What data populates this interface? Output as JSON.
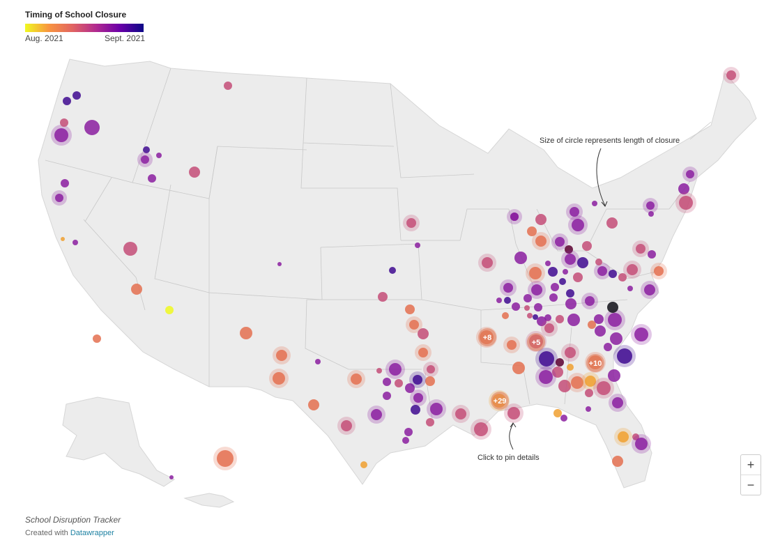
{
  "legend": {
    "title": "Timing of School Closure",
    "start_label": "Aug. 2021",
    "end_label": "Sept. 2021",
    "gradient": [
      "#f0f921",
      "#f89540",
      "#e16462",
      "#b12a90",
      "#6a00a8",
      "#0d0887"
    ]
  },
  "annotations": {
    "size_note": "Size of circle represents length of closure",
    "pin_note": "Click to pin details"
  },
  "zoom": {
    "in_label": "+",
    "out_label": "−"
  },
  "footer": {
    "title": "School Disruption Tracker",
    "credit_prefix": "Created with",
    "credit_link": "Datawrapper"
  },
  "colors": {
    "land": "#ececec",
    "border": "#c8c8c8"
  },
  "cluster_labels": [
    "+8",
    "+5",
    "+10",
    "+29"
  ]
}
